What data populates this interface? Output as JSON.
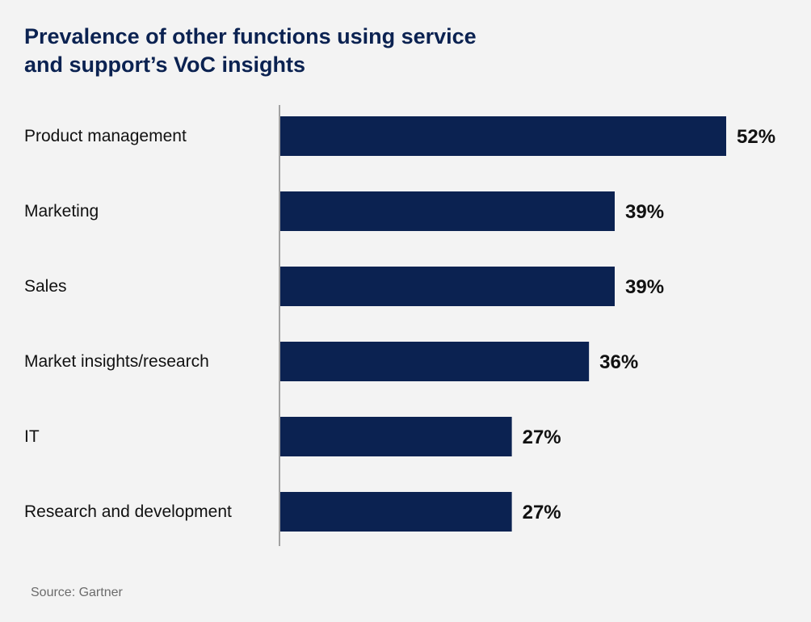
{
  "title_lines": [
    "Prevalence of other functions using service",
    "and support’s VoC insights"
  ],
  "source": "Source: Gartner",
  "colors": {
    "background": "#f3f3f3",
    "bar": "#0b2251",
    "title": "#0b2251",
    "axis": "#888888"
  },
  "chart_data": {
    "type": "bar",
    "orientation": "horizontal",
    "title": "Prevalence of other functions using service and support’s VoC insights",
    "categories": [
      "Product management",
      "Marketing",
      "Sales",
      "Market insights/research",
      "IT",
      "Research and development"
    ],
    "values": [
      52,
      39,
      39,
      36,
      27,
      27
    ],
    "value_labels": [
      "52%",
      "39%",
      "39%",
      "36%",
      "27%",
      "27%"
    ],
    "unit": "%",
    "xlim": [
      0,
      100
    ],
    "grid": false,
    "legend": "none"
  }
}
